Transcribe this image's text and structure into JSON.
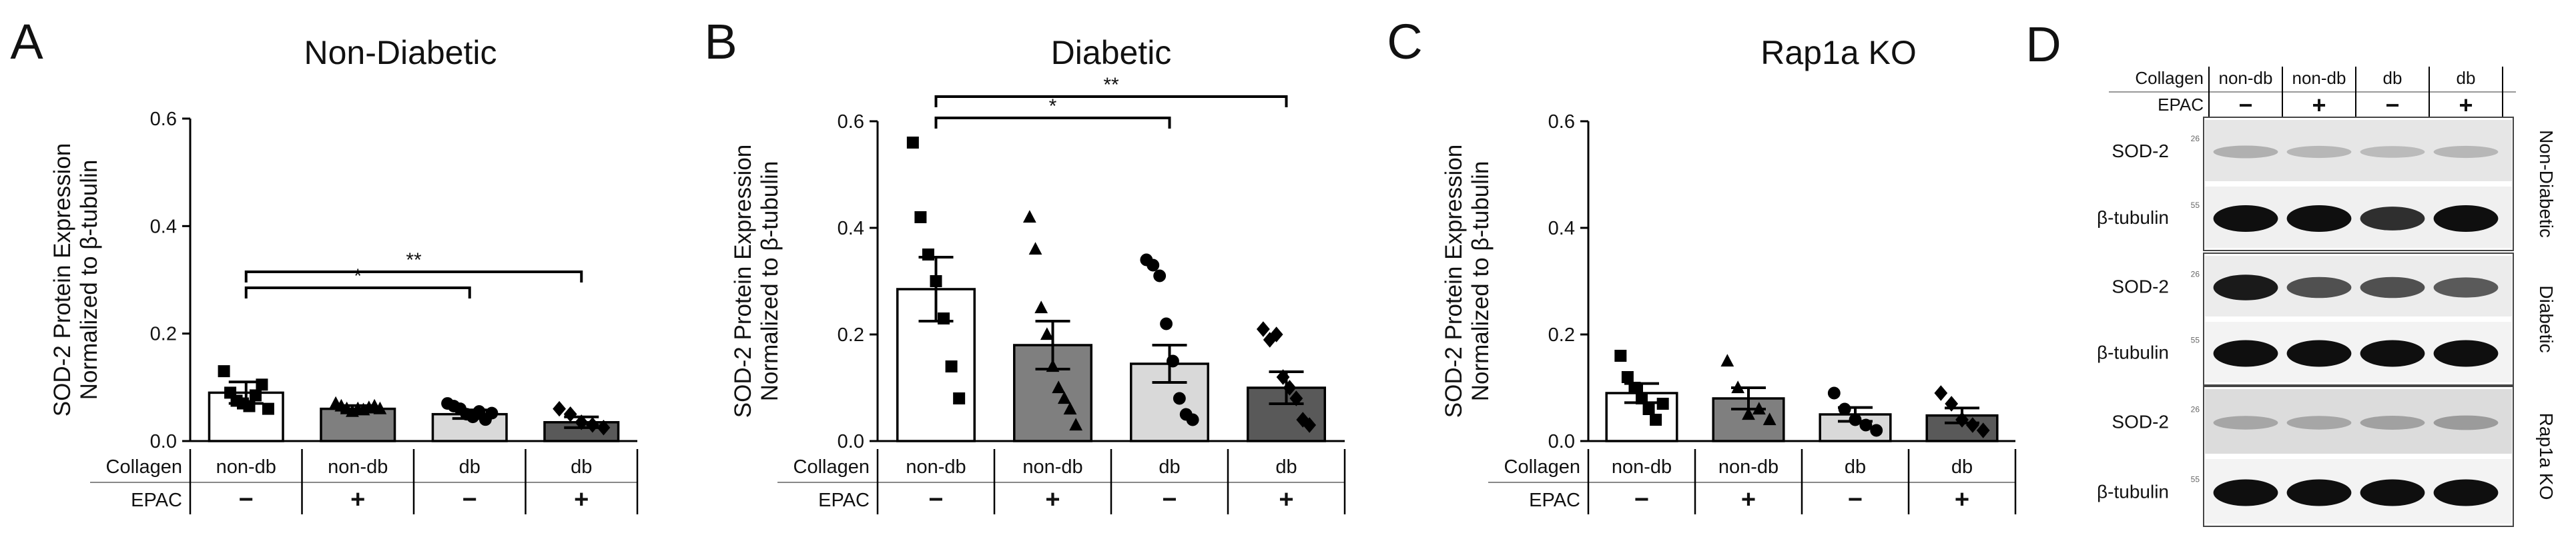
{
  "figure": {
    "panels": [
      "A",
      "B",
      "C",
      "D"
    ]
  },
  "chart_data": [
    {
      "type": "bar",
      "panel_letter": "A",
      "title": "Non-Diabetic",
      "ylabel_line1": "SOD-2 Protein Expression",
      "ylabel_line2": "Normalized to β-tubulin",
      "ylim": [
        0,
        0.6
      ],
      "yticks": [
        "0.0",
        "0.2",
        "0.4",
        "0.6"
      ],
      "categories": [
        "non-db −",
        "non-db +",
        "db −",
        "db +"
      ],
      "collagen_label": "Collagen",
      "epac_label": "EPAC",
      "collagen": [
        "non-db",
        "non-db",
        "db",
        "db"
      ],
      "epac": [
        "−",
        "+",
        "−",
        "+"
      ],
      "values": [
        0.09,
        0.06,
        0.05,
        0.035
      ],
      "sem": [
        0.02,
        0.006,
        0.008,
        0.01
      ],
      "bar_colors": [
        "#ffffff",
        "#7f7f7f",
        "#d9d9d9",
        "#595959"
      ],
      "points": [
        [
          0.13,
          0.09,
          0.075,
          0.07,
          0.065,
          0.085,
          0.105,
          0.06
        ],
        [
          0.07,
          0.065,
          0.06,
          0.055,
          0.06,
          0.058,
          0.062,
          0.065,
          0.06
        ],
        [
          0.07,
          0.065,
          0.06,
          0.05,
          0.045,
          0.055,
          0.04,
          0.052
        ],
        [
          0.06,
          0.05,
          0.035,
          0.03,
          0.025
        ]
      ],
      "markers": [
        "square",
        "triangle",
        "circle",
        "diamond"
      ],
      "significance": [
        {
          "from": 0,
          "to": 2,
          "label": "*"
        },
        {
          "from": 0,
          "to": 3,
          "label": "**"
        }
      ]
    },
    {
      "type": "bar",
      "panel_letter": "B",
      "title": "Diabetic",
      "ylabel_line1": "SOD-2 Protein Expression",
      "ylabel_line2": "Normalized to β-tubulin",
      "ylim": [
        0,
        0.6
      ],
      "yticks": [
        "0.0",
        "0.2",
        "0.4",
        "0.6"
      ],
      "categories": [
        "non-db −",
        "non-db +",
        "db −",
        "db +"
      ],
      "collagen_label": "Collagen",
      "epac_label": "EPAC",
      "collagen": [
        "non-db",
        "non-db",
        "db",
        "db"
      ],
      "epac": [
        "−",
        "+",
        "−",
        "+"
      ],
      "values": [
        0.285,
        0.18,
        0.145,
        0.1
      ],
      "sem": [
        0.06,
        0.045,
        0.035,
        0.03
      ],
      "bar_colors": [
        "#ffffff",
        "#7f7f7f",
        "#d9d9d9",
        "#595959"
      ],
      "points": [
        [
          0.56,
          0.42,
          0.35,
          0.3,
          0.23,
          0.14,
          0.08
        ],
        [
          0.42,
          0.36,
          0.25,
          0.2,
          0.14,
          0.1,
          0.08,
          0.06,
          0.03
        ],
        [
          0.34,
          0.33,
          0.31,
          0.22,
          0.15,
          0.08,
          0.05,
          0.04
        ],
        [
          0.21,
          0.19,
          0.2,
          0.12,
          0.1,
          0.08,
          0.04,
          0.03
        ]
      ],
      "markers": [
        "square",
        "triangle",
        "circle",
        "diamond"
      ],
      "significance": [
        {
          "from": 0,
          "to": 2,
          "label": "*"
        },
        {
          "from": 0,
          "to": 3,
          "label": "**"
        }
      ]
    },
    {
      "type": "bar",
      "panel_letter": "C",
      "title": "Rap1a KO",
      "ylabel_line1": "SOD-2 Protein Expression",
      "ylabel_line2": "Normalized to β-tubulin",
      "ylim": [
        0,
        0.6
      ],
      "yticks": [
        "0.0",
        "0.2",
        "0.4",
        "0.6"
      ],
      "categories": [
        "non-db −",
        "non-db +",
        "db −",
        "db +"
      ],
      "collagen_label": "Collagen",
      "epac_label": "EPAC",
      "collagen": [
        "non-db",
        "non-db",
        "db",
        "db"
      ],
      "epac": [
        "−",
        "+",
        "−",
        "+"
      ],
      "values": [
        0.09,
        0.08,
        0.05,
        0.048
      ],
      "sem": [
        0.018,
        0.02,
        0.013,
        0.014
      ],
      "bar_colors": [
        "#ffffff",
        "#7f7f7f",
        "#d9d9d9",
        "#595959"
      ],
      "points": [
        [
          0.16,
          0.12,
          0.1,
          0.08,
          0.06,
          0.04,
          0.07
        ],
        [
          0.15,
          0.1,
          0.05,
          0.06,
          0.04
        ],
        [
          0.09,
          0.06,
          0.04,
          0.03,
          0.02
        ],
        [
          0.09,
          0.07,
          0.04,
          0.03,
          0.02
        ]
      ],
      "markers": [
        "square",
        "triangle",
        "circle",
        "diamond"
      ],
      "significance": []
    }
  ],
  "western_blot": {
    "panel_letter": "D",
    "collagen_label": "Collagen",
    "epac_label": "EPAC",
    "collagen": [
      "non-db",
      "non-db",
      "db",
      "db"
    ],
    "epac": [
      "−",
      "+",
      "−",
      "+"
    ],
    "groups": [
      {
        "side_label": "Non-Diabetic",
        "rows": [
          {
            "label": "SOD-2",
            "marker": "26",
            "intensity": [
              0.25,
              0.22,
              0.2,
              0.22
            ],
            "background": "#e6e6e6"
          },
          {
            "label": "β-tubulin",
            "marker": "55",
            "intensity": [
              1.0,
              1.0,
              0.85,
              1.0
            ],
            "background": "#f0f0f0"
          }
        ]
      },
      {
        "side_label": "Diabetic",
        "rows": [
          {
            "label": "SOD-2",
            "marker": "26",
            "intensity": [
              0.95,
              0.7,
              0.7,
              0.65
            ],
            "background": "#ececec"
          },
          {
            "label": "β-tubulin",
            "marker": "55",
            "intensity": [
              1.0,
              1.0,
              1.0,
              1.0
            ],
            "background": "#f3f3f3"
          }
        ]
      },
      {
        "side_label": "Rap1a KO",
        "rows": [
          {
            "label": "SOD-2",
            "marker": "26",
            "intensity": [
              0.3,
              0.3,
              0.32,
              0.35
            ],
            "background": "#dcdcdc"
          },
          {
            "label": "β-tubulin",
            "marker": "55",
            "intensity": [
              1.0,
              1.0,
              1.0,
              1.0
            ],
            "background": "#f3f3f3"
          }
        ]
      }
    ]
  }
}
